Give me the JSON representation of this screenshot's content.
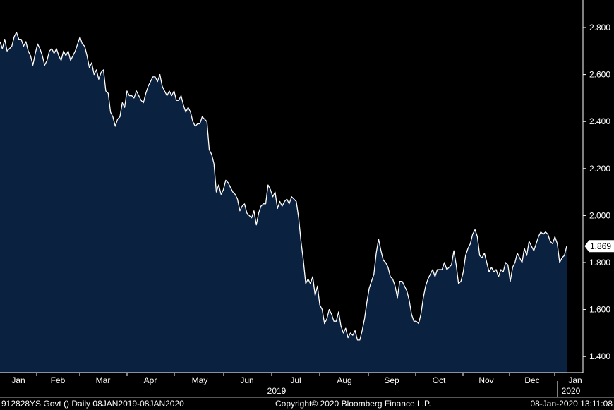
{
  "chart_data": {
    "type": "area",
    "title": "",
    "xlabel": "",
    "ylabel": "",
    "ylim": [
      1.34,
      2.92
    ],
    "y_ticks": [
      "1.400",
      "1.600",
      "1.800",
      "2.000",
      "2.200",
      "2.400",
      "2.600",
      "2.800"
    ],
    "x_month_labels": [
      "Jan",
      "Feb",
      "Mar",
      "Apr",
      "May",
      "Jun",
      "Jul",
      "Aug",
      "Sep",
      "Oct",
      "Nov",
      "Dec",
      "Jan"
    ],
    "x_year_labels": [
      "2019",
      "2020"
    ],
    "last_value_label": "1.869",
    "grid": false,
    "colors": {
      "line": "#ffffff",
      "fill": "#0b2140",
      "background": "#000000",
      "axis": "#ffffff"
    },
    "series": [
      {
        "values": [
          2.74,
          2.71,
          2.75,
          2.7,
          2.71,
          2.72,
          2.76,
          2.78,
          2.75,
          2.75,
          2.72,
          2.74,
          2.7,
          2.68,
          2.64,
          2.69,
          2.73,
          2.71,
          2.68,
          2.64,
          2.66,
          2.7,
          2.71,
          2.69,
          2.71,
          2.68,
          2.66,
          2.7,
          2.68,
          2.7,
          2.66,
          2.68,
          2.7,
          2.73,
          2.76,
          2.73,
          2.72,
          2.68,
          2.63,
          2.65,
          2.6,
          2.62,
          2.58,
          2.61,
          2.62,
          2.53,
          2.52,
          2.44,
          2.42,
          2.38,
          2.41,
          2.42,
          2.48,
          2.46,
          2.53,
          2.51,
          2.51,
          2.5,
          2.53,
          2.51,
          2.49,
          2.48,
          2.52,
          2.55,
          2.57,
          2.59,
          2.59,
          2.57,
          2.6,
          2.55,
          2.53,
          2.51,
          2.53,
          2.51,
          2.53,
          2.49,
          2.49,
          2.51,
          2.47,
          2.44,
          2.46,
          2.44,
          2.4,
          2.38,
          2.39,
          2.39,
          2.42,
          2.41,
          2.4,
          2.28,
          2.26,
          2.22,
          2.1,
          2.13,
          2.09,
          2.11,
          2.15,
          2.14,
          2.12,
          2.1,
          2.09,
          2.07,
          2.02,
          2.04,
          2.05,
          2.01,
          2.0,
          1.99,
          2.02,
          1.96,
          2.01,
          2.04,
          2.05,
          2.05,
          2.13,
          2.11,
          2.08,
          2.1,
          2.03,
          2.06,
          2.04,
          2.06,
          2.07,
          2.05,
          2.08,
          2.07,
          2.06,
          1.99,
          1.89,
          1.81,
          1.71,
          1.73,
          1.71,
          1.74,
          1.66,
          1.7,
          1.62,
          1.6,
          1.54,
          1.56,
          1.6,
          1.58,
          1.55,
          1.55,
          1.59,
          1.53,
          1.5,
          1.52,
          1.48,
          1.5,
          1.49,
          1.51,
          1.47,
          1.47,
          1.51,
          1.56,
          1.63,
          1.69,
          1.72,
          1.75,
          1.84,
          1.9,
          1.85,
          1.81,
          1.8,
          1.78,
          1.74,
          1.73,
          1.7,
          1.65,
          1.72,
          1.72,
          1.7,
          1.68,
          1.64,
          1.58,
          1.55,
          1.55,
          1.54,
          1.58,
          1.65,
          1.7,
          1.73,
          1.75,
          1.77,
          1.74,
          1.77,
          1.77,
          1.77,
          1.8,
          1.77,
          1.78,
          1.79,
          1.85,
          1.79,
          1.71,
          1.72,
          1.76,
          1.83,
          1.86,
          1.88,
          1.92,
          1.94,
          1.91,
          1.83,
          1.82,
          1.84,
          1.8,
          1.76,
          1.78,
          1.76,
          1.77,
          1.74,
          1.77,
          1.76,
          1.8,
          1.79,
          1.72,
          1.78,
          1.8,
          1.84,
          1.82,
          1.8,
          1.86,
          1.83,
          1.89,
          1.87,
          1.85,
          1.88,
          1.91,
          1.93,
          1.92,
          1.93,
          1.92,
          1.89,
          1.88,
          1.91,
          1.88,
          1.8,
          1.82,
          1.83,
          1.87
        ]
      }
    ]
  },
  "footer": {
    "left": "912828YS Govt ()  Daily 08JAN2019-08JAN2020",
    "center": "Copyright© 2020 Bloomberg Finance L.P.",
    "right": "08-Jan-2020 13:11:08"
  }
}
